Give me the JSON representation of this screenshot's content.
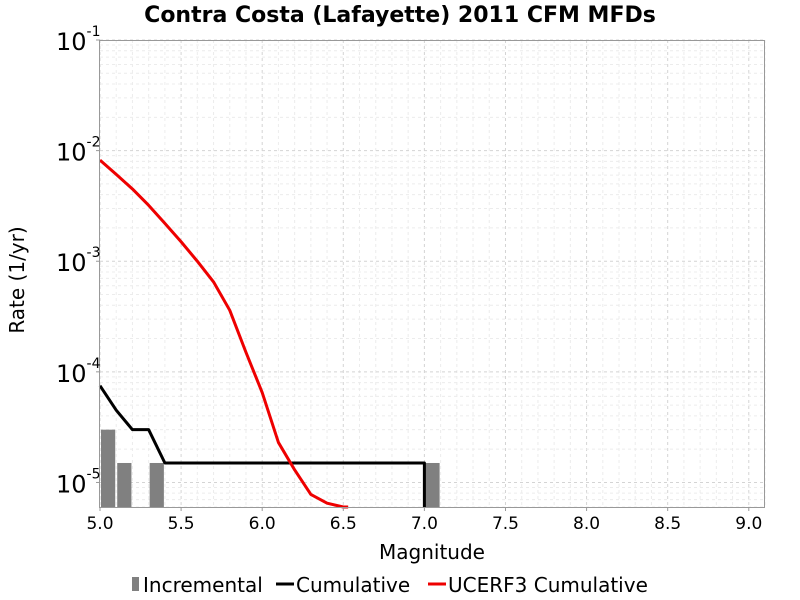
{
  "chart_data": {
    "type": "line",
    "title": "Contra Costa (Lafayette) 2011 CFM MFDs",
    "xlabel": "Magnitude",
    "ylabel": "Rate (1/yr)",
    "y_scale": "log",
    "xlim": [
      5.0,
      9.1
    ],
    "ylim": [
      6e-06,
      0.1
    ],
    "grid": true,
    "legend_position": "bottom",
    "x_ticks": [
      "5.0",
      "5.5",
      "6.0",
      "6.5",
      "7.0",
      "7.5",
      "8.0",
      "8.5",
      "9.0"
    ],
    "y_ticks": [
      {
        "base": "10",
        "exp": "-5",
        "value": 1e-05
      },
      {
        "base": "10",
        "exp": "-4",
        "value": 0.0001
      },
      {
        "base": "10",
        "exp": "-3",
        "value": 0.001
      },
      {
        "base": "10",
        "exp": "-2",
        "value": 0.01
      },
      {
        "base": "10",
        "exp": "-1",
        "value": 0.1
      }
    ],
    "series": [
      {
        "name": "Incremental",
        "kind": "bar",
        "color": "#808080",
        "bar_width": 0.1,
        "x": [
          5.05,
          5.15,
          5.35,
          7.05
        ],
        "y": [
          3e-05,
          1.5e-05,
          1.5e-05,
          1.5e-05
        ]
      },
      {
        "name": "Cumulative",
        "kind": "line",
        "color": "#000000",
        "x": [
          5.0,
          5.1,
          5.2,
          5.3,
          5.4,
          7.0,
          7.0
        ],
        "y": [
          7.5e-05,
          4.5e-05,
          3e-05,
          3e-05,
          1.5e-05,
          1.5e-05,
          6e-06
        ]
      },
      {
        "name": "UCERF3 Cumulative",
        "kind": "line",
        "color": "#ee0000",
        "x": [
          5.0,
          5.1,
          5.2,
          5.3,
          5.4,
          5.5,
          5.6,
          5.7,
          5.8,
          5.9,
          6.0,
          6.1,
          6.2,
          6.3,
          6.4,
          6.5,
          6.53
        ],
        "y": [
          0.0082,
          0.0061,
          0.0045,
          0.0032,
          0.0022,
          0.0015,
          0.001,
          0.00065,
          0.00036,
          0.00015,
          6.5e-05,
          2.3e-05,
          1.3e-05,
          7.8e-06,
          6.5e-06,
          6e-06,
          6e-06
        ]
      }
    ]
  }
}
